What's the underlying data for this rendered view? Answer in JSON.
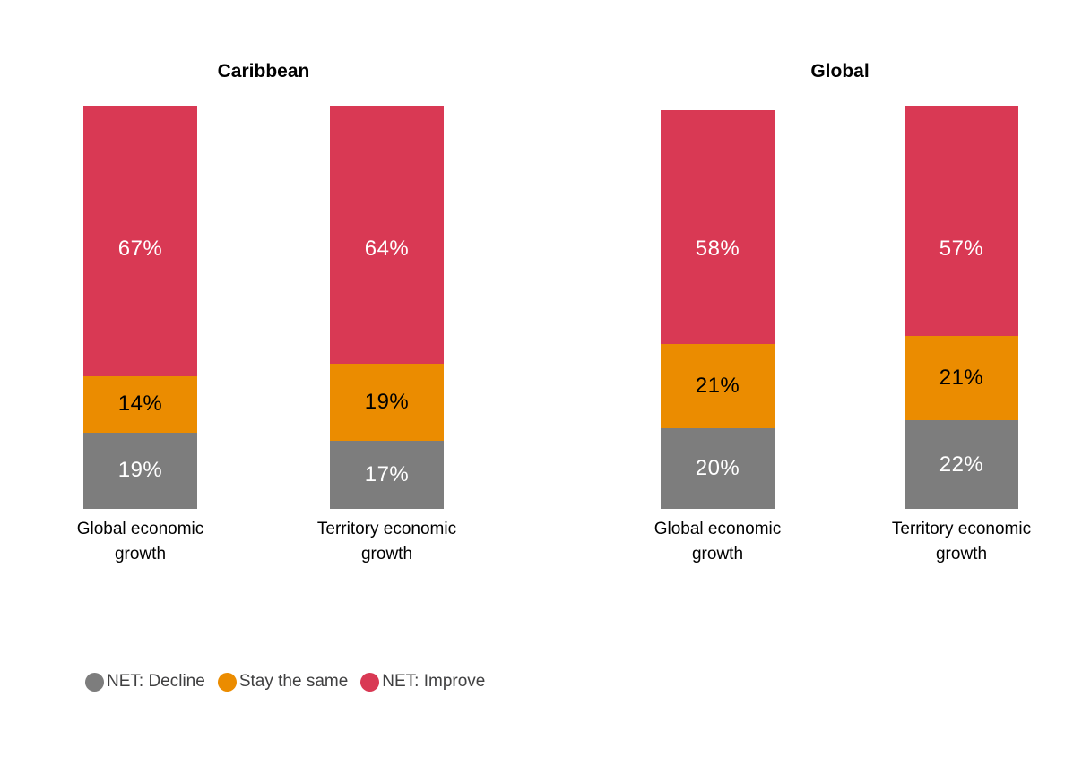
{
  "chart_data": {
    "type": "bar",
    "stacked": true,
    "orientation": "vertical",
    "groups": [
      "Caribbean",
      "Global"
    ],
    "categories": [
      "Global economic growth",
      "Territory economic growth",
      "Global economic growth",
      "Territory economic growth"
    ],
    "category_group_index": [
      0,
      0,
      1,
      1
    ],
    "series": [
      {
        "name": "NET: Decline",
        "color": "#7D7D7D",
        "text_color": "#ffffff",
        "values": [
          19,
          17,
          20,
          22
        ]
      },
      {
        "name": "Stay the same",
        "color": "#EB8C00",
        "text_color": "#000000",
        "values": [
          14,
          19,
          21,
          21
        ]
      },
      {
        "name": "NET: Improve",
        "color": "#D93954",
        "text_color": "#ffffff",
        "values": [
          67,
          64,
          58,
          57
        ]
      }
    ],
    "value_suffix": "%",
    "ylim": [
      0,
      100
    ],
    "grid": false,
    "axes_visible": false,
    "legend_position": "bottom-left",
    "legend": [
      "NET: Decline",
      "Stay the same",
      "NET: Improve"
    ],
    "colors": {
      "decline_gray": "#7D7D7D",
      "stay_orange": "#EB8C00",
      "improve_rose": "#D93954",
      "legend_text": "#404041",
      "title_text": "#000000",
      "background": "#ffffff"
    }
  }
}
